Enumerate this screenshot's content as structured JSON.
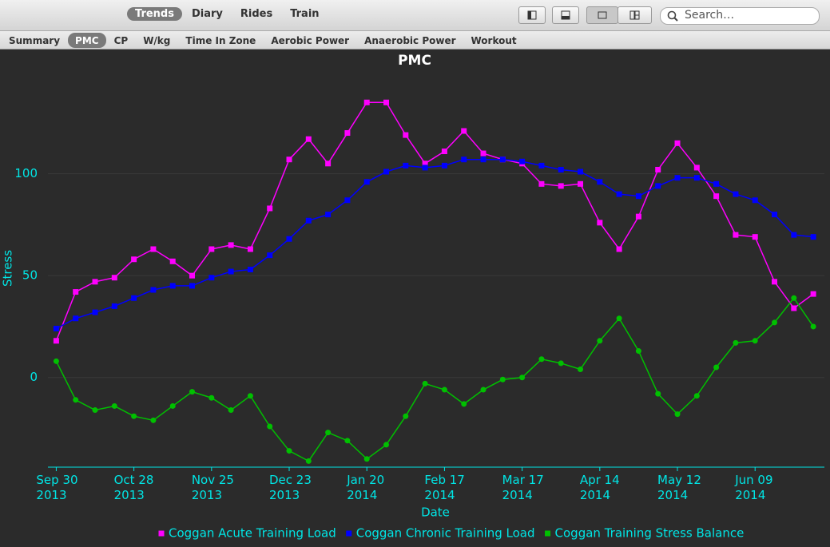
{
  "toolbar": {
    "views": [
      "Trends",
      "Diary",
      "Rides",
      "Train"
    ],
    "search_placeholder": "Search…"
  },
  "tabs": [
    "Summary",
    "PMC",
    "CP",
    "W/kg",
    "Time In Zone",
    "Aerobic Power",
    "Anaerobic Power",
    "Workout"
  ],
  "chart_data": {
    "type": "line",
    "title": "PMC",
    "x_label": "Date",
    "y_label": "Stress",
    "x": [
      "2013-09-30",
      "2013-10-07",
      "2013-10-14",
      "2013-10-21",
      "2013-10-28",
      "2013-11-04",
      "2013-11-11",
      "2013-11-18",
      "2013-11-25",
      "2013-12-02",
      "2013-12-09",
      "2013-12-16",
      "2013-12-23",
      "2013-12-30",
      "2014-01-06",
      "2014-01-13",
      "2014-01-20",
      "2014-01-27",
      "2014-02-03",
      "2014-02-10",
      "2014-02-17",
      "2014-02-24",
      "2014-03-03",
      "2014-03-10",
      "2014-03-17",
      "2014-03-24",
      "2014-03-31",
      "2014-04-07",
      "2014-04-14",
      "2014-04-21",
      "2014-04-28",
      "2014-05-05",
      "2014-05-12",
      "2014-05-19",
      "2014-05-26",
      "2014-06-02",
      "2014-06-09",
      "2014-06-16",
      "2014-06-23",
      "2014-06-30"
    ],
    "xlim": [
      "2013-09-27",
      "2014-07-04"
    ],
    "xticks": [
      {
        "value": "2013-09-30",
        "label": [
          "Sep 30",
          "2013"
        ]
      },
      {
        "value": "2013-10-28",
        "label": [
          "Oct 28",
          "2013"
        ]
      },
      {
        "value": "2013-11-25",
        "label": [
          "Nov 25",
          "2013"
        ]
      },
      {
        "value": "2013-12-23",
        "label": [
          "Dec 23",
          "2013"
        ]
      },
      {
        "value": "2014-01-20",
        "label": [
          "Jan 20",
          "2014"
        ]
      },
      {
        "value": "2014-02-17",
        "label": [
          "Feb 17",
          "2014"
        ]
      },
      {
        "value": "2014-03-17",
        "label": [
          "Mar 17",
          "2014"
        ]
      },
      {
        "value": "2014-04-14",
        "label": [
          "Apr 14",
          "2014"
        ]
      },
      {
        "value": "2014-05-12",
        "label": [
          "May 12",
          "2014"
        ]
      },
      {
        "value": "2014-06-09",
        "label": [
          "Jun 09",
          "2014"
        ]
      }
    ],
    "ylim": [
      -44,
      150
    ],
    "yticks": [
      0,
      50,
      100
    ],
    "grid": true,
    "legend": "bottom",
    "series": [
      {
        "name": "Coggan Acute Training Load",
        "color": "#ff00ff",
        "marker": "square",
        "values": [
          18,
          42,
          47,
          49,
          58,
          63,
          57,
          50,
          63,
          65,
          63,
          83,
          107,
          117,
          105,
          120,
          135,
          135,
          119,
          105,
          111,
          121,
          110,
          107,
          105,
          95,
          94,
          95,
          76,
          63,
          79,
          102,
          115,
          103,
          89,
          70,
          69,
          47,
          34,
          41
        ]
      },
      {
        "name": "Coggan Chronic Training Load",
        "color": "#0000ff",
        "marker": "square",
        "values": [
          24,
          29,
          32,
          35,
          39,
          43,
          45,
          45,
          49,
          52,
          53,
          60,
          68,
          77,
          80,
          87,
          96,
          101,
          104,
          103,
          104,
          107,
          107,
          107,
          106,
          104,
          102,
          101,
          96,
          90,
          89,
          94,
          98,
          98,
          95,
          90,
          87,
          80,
          70,
          69
        ]
      },
      {
        "name": "Coggan Training Stress Balance",
        "color": "#00c000",
        "marker": "circle",
        "values": [
          8,
          -11,
          -16,
          -14,
          -19,
          -21,
          -14,
          -7,
          -10,
          -16,
          -9,
          -24,
          -36,
          -41,
          -27,
          -31,
          -40,
          -33,
          -19,
          -3,
          -6,
          -13,
          -6,
          -1,
          0,
          9,
          7,
          4,
          18,
          29,
          13,
          -8,
          -18,
          -9,
          5,
          17,
          18,
          27,
          39,
          25
        ]
      }
    ]
  }
}
